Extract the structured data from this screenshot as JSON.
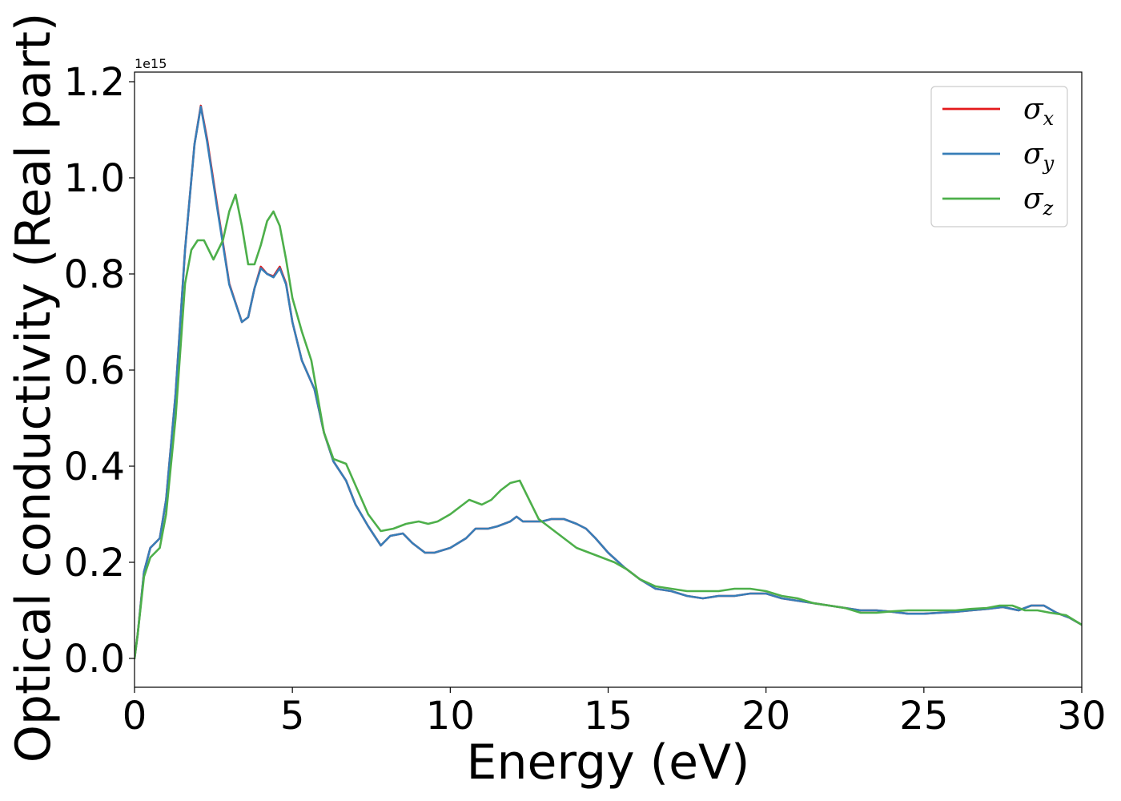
{
  "chart_data": {
    "type": "line",
    "title": "",
    "xlabel": "Energy (eV)",
    "ylabel": "Optical conductivity (Real part)",
    "y_offset_label": "1e15",
    "xlim": [
      0,
      30
    ],
    "ylim": [
      -0.06,
      1.22
    ],
    "xticks": [
      0,
      5,
      10,
      15,
      20,
      25,
      30
    ],
    "xtick_labels": [
      "0",
      "5",
      "10",
      "15",
      "20",
      "25",
      "30"
    ],
    "yticks": [
      0.0,
      0.2,
      0.4,
      0.6,
      0.8,
      1.0,
      1.2
    ],
    "ytick_labels": [
      "0.0",
      "0.2",
      "0.4",
      "0.6",
      "0.8",
      "1.0",
      "1.2"
    ],
    "grid": false,
    "legend_position": "top-right",
    "series": [
      {
        "name": "σx",
        "legend_base": "σ",
        "legend_sub": "x",
        "color": "#e41a1c",
        "x": [
          0,
          0.1,
          0.3,
          0.5,
          0.8,
          1.0,
          1.3,
          1.6,
          1.9,
          2.1,
          2.3,
          2.6,
          3.0,
          3.4,
          3.6,
          3.8,
          4.0,
          4.2,
          4.4,
          4.6,
          4.8,
          5.0,
          5.3,
          5.7,
          6.0,
          6.3,
          6.7,
          7.0,
          7.4,
          7.8,
          8.1,
          8.5,
          8.8,
          9.2,
          9.5,
          10.0,
          10.5,
          10.8,
          11.2,
          11.5,
          11.9,
          12.1,
          12.3,
          12.6,
          12.9,
          13.2,
          13.6,
          14.0,
          14.3,
          14.6,
          15.0,
          15.5,
          16.0,
          16.5,
          17.0,
          17.5,
          18.0,
          18.5,
          19.0,
          19.5,
          20.0,
          20.5,
          21.0,
          21.5,
          22.0,
          22.5,
          23.0,
          23.5,
          24.0,
          24.5,
          25.0,
          25.5,
          26.0,
          26.5,
          27.0,
          27.5,
          28.0,
          28.4,
          28.8,
          29.2,
          29.6,
          30.0
        ],
        "values": [
          0.0,
          0.05,
          0.18,
          0.23,
          0.25,
          0.33,
          0.55,
          0.85,
          1.07,
          1.15,
          1.08,
          0.95,
          0.78,
          0.7,
          0.71,
          0.77,
          0.815,
          0.8,
          0.795,
          0.815,
          0.78,
          0.7,
          0.62,
          0.56,
          0.47,
          0.41,
          0.37,
          0.32,
          0.275,
          0.235,
          0.255,
          0.26,
          0.24,
          0.22,
          0.22,
          0.23,
          0.25,
          0.27,
          0.27,
          0.275,
          0.285,
          0.295,
          0.285,
          0.285,
          0.285,
          0.29,
          0.29,
          0.28,
          0.27,
          0.25,
          0.22,
          0.19,
          0.165,
          0.145,
          0.14,
          0.13,
          0.125,
          0.13,
          0.13,
          0.135,
          0.135,
          0.125,
          0.12,
          0.115,
          0.11,
          0.105,
          0.1,
          0.1,
          0.097,
          0.093,
          0.093,
          0.095,
          0.097,
          0.1,
          0.103,
          0.107,
          0.1,
          0.11,
          0.11,
          0.095,
          0.085,
          0.07
        ]
      },
      {
        "name": "σy",
        "legend_base": "σ",
        "legend_sub": "y",
        "color": "#377eb8",
        "x": [
          0,
          0.1,
          0.3,
          0.5,
          0.8,
          1.0,
          1.3,
          1.6,
          1.9,
          2.1,
          2.3,
          2.6,
          3.0,
          3.4,
          3.6,
          3.8,
          4.0,
          4.2,
          4.4,
          4.6,
          4.8,
          5.0,
          5.3,
          5.7,
          6.0,
          6.3,
          6.7,
          7.0,
          7.4,
          7.8,
          8.1,
          8.5,
          8.8,
          9.2,
          9.5,
          10.0,
          10.5,
          10.8,
          11.2,
          11.5,
          11.9,
          12.1,
          12.3,
          12.6,
          12.9,
          13.2,
          13.6,
          14.0,
          14.3,
          14.6,
          15.0,
          15.5,
          16.0,
          16.5,
          17.0,
          17.5,
          18.0,
          18.5,
          19.0,
          19.5,
          20.0,
          20.5,
          21.0,
          21.5,
          22.0,
          22.5,
          23.0,
          23.5,
          24.0,
          24.5,
          25.0,
          25.5,
          26.0,
          26.5,
          27.0,
          27.5,
          28.0,
          28.4,
          28.8,
          29.2,
          29.6,
          30.0
        ],
        "values": [
          0.0,
          0.05,
          0.18,
          0.23,
          0.25,
          0.33,
          0.55,
          0.85,
          1.07,
          1.148,
          1.075,
          0.945,
          0.778,
          0.7,
          0.71,
          0.77,
          0.812,
          0.8,
          0.793,
          0.812,
          0.778,
          0.7,
          0.62,
          0.56,
          0.47,
          0.41,
          0.37,
          0.32,
          0.275,
          0.235,
          0.255,
          0.26,
          0.24,
          0.22,
          0.22,
          0.23,
          0.25,
          0.27,
          0.27,
          0.275,
          0.285,
          0.295,
          0.285,
          0.285,
          0.285,
          0.29,
          0.29,
          0.28,
          0.27,
          0.25,
          0.22,
          0.19,
          0.165,
          0.145,
          0.14,
          0.13,
          0.125,
          0.13,
          0.13,
          0.135,
          0.135,
          0.125,
          0.12,
          0.115,
          0.11,
          0.105,
          0.1,
          0.1,
          0.097,
          0.093,
          0.093,
          0.095,
          0.097,
          0.1,
          0.103,
          0.107,
          0.1,
          0.11,
          0.11,
          0.095,
          0.085,
          0.07
        ]
      },
      {
        "name": "σz",
        "legend_base": "σ",
        "legend_sub": "z",
        "color": "#4daf4a",
        "x": [
          0,
          0.1,
          0.3,
          0.5,
          0.8,
          1.0,
          1.3,
          1.6,
          1.8,
          2.0,
          2.2,
          2.5,
          2.8,
          3.0,
          3.2,
          3.4,
          3.6,
          3.8,
          4.0,
          4.2,
          4.4,
          4.6,
          4.8,
          5.0,
          5.3,
          5.6,
          6.0,
          6.3,
          6.7,
          7.0,
          7.4,
          7.8,
          8.2,
          8.6,
          9.0,
          9.3,
          9.6,
          10.0,
          10.3,
          10.6,
          11.0,
          11.3,
          11.6,
          11.9,
          12.2,
          12.5,
          12.8,
          13.2,
          13.6,
          14.0,
          14.4,
          14.8,
          15.2,
          15.6,
          16.0,
          16.5,
          17.0,
          17.5,
          18.0,
          18.5,
          19.0,
          19.5,
          20.0,
          20.5,
          21.0,
          21.5,
          22.0,
          22.5,
          23.0,
          23.5,
          24.0,
          24.5,
          25.0,
          25.5,
          26.0,
          26.5,
          27.0,
          27.4,
          27.8,
          28.2,
          28.6,
          29.0,
          29.5,
          30.0
        ],
        "values": [
          0.0,
          0.05,
          0.17,
          0.21,
          0.23,
          0.3,
          0.5,
          0.78,
          0.85,
          0.87,
          0.87,
          0.83,
          0.87,
          0.93,
          0.965,
          0.9,
          0.82,
          0.82,
          0.86,
          0.91,
          0.93,
          0.9,
          0.83,
          0.75,
          0.68,
          0.62,
          0.47,
          0.415,
          0.405,
          0.36,
          0.3,
          0.265,
          0.27,
          0.28,
          0.285,
          0.28,
          0.285,
          0.3,
          0.315,
          0.33,
          0.32,
          0.33,
          0.35,
          0.365,
          0.37,
          0.33,
          0.29,
          0.27,
          0.25,
          0.23,
          0.22,
          0.21,
          0.2,
          0.185,
          0.165,
          0.15,
          0.145,
          0.14,
          0.14,
          0.14,
          0.145,
          0.145,
          0.14,
          0.13,
          0.125,
          0.115,
          0.11,
          0.105,
          0.095,
          0.095,
          0.098,
          0.1,
          0.1,
          0.1,
          0.1,
          0.103,
          0.105,
          0.11,
          0.11,
          0.1,
          0.1,
          0.095,
          0.09,
          0.07
        ]
      }
    ]
  }
}
